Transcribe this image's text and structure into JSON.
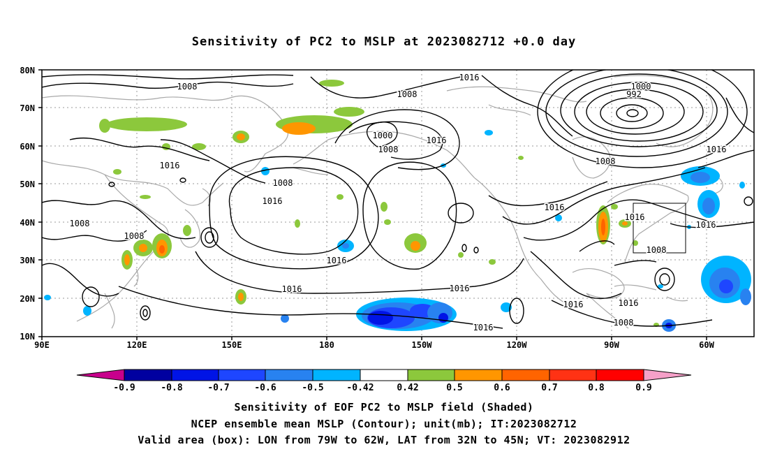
{
  "title": "Sensitivity of PC2 to MSLP at 2023082712 +0.0 day",
  "map": {
    "lat_labels": [
      "80N",
      "70N",
      "60N",
      "50N",
      "40N",
      "30N",
      "20N",
      "10N"
    ],
    "lon_labels": [
      "90E",
      "120E",
      "150E",
      "180",
      "150W",
      "120W",
      "90W",
      "60W"
    ],
    "lon_range": [
      "90E",
      "40W"
    ],
    "lat_range": [
      "10N",
      "80N"
    ],
    "gridlines": "dotted",
    "contour_labels": [
      "1008",
      "1016",
      "1008",
      "1000",
      "992",
      "1016",
      "1008",
      "1000",
      "1008",
      "1016",
      "1016",
      "1016",
      "1008",
      "1016",
      "1016",
      "1016",
      "1008",
      "1008",
      "1016",
      "1016",
      "1016",
      "1016",
      "1016",
      "1008",
      "1016",
      "1008"
    ],
    "validation_box": {
      "lon": [
        "79W",
        "62W"
      ],
      "lat": [
        "32N",
        "45N"
      ]
    }
  },
  "colorbar": {
    "tick_labels": [
      "-0.9",
      "-0.8",
      "-0.7",
      "-0.6",
      "-0.5",
      "-0.42",
      "0.42",
      "0.5",
      "0.6",
      "0.7",
      "0.8",
      "0.9"
    ],
    "colors": [
      "#c8008c",
      "#0000a0",
      "#0014e6",
      "#1e46ff",
      "#2882f0",
      "#00b4ff",
      "#ffffff",
      "#8cc83c",
      "#ff9600",
      "#ff6400",
      "#ff3214",
      "#ff0000",
      "#f5a0c8"
    ]
  },
  "footer": {
    "line1": "Sensitivity of EOF PC2 to MSLP field (Shaded)",
    "line2": "NCEP ensemble mean MSLP (Contour); unit(mb); IT:2023082712",
    "line3": "Valid area (box): LON from 79W to 62W, LAT from 32N to 45N; VT: 2023082912"
  }
}
